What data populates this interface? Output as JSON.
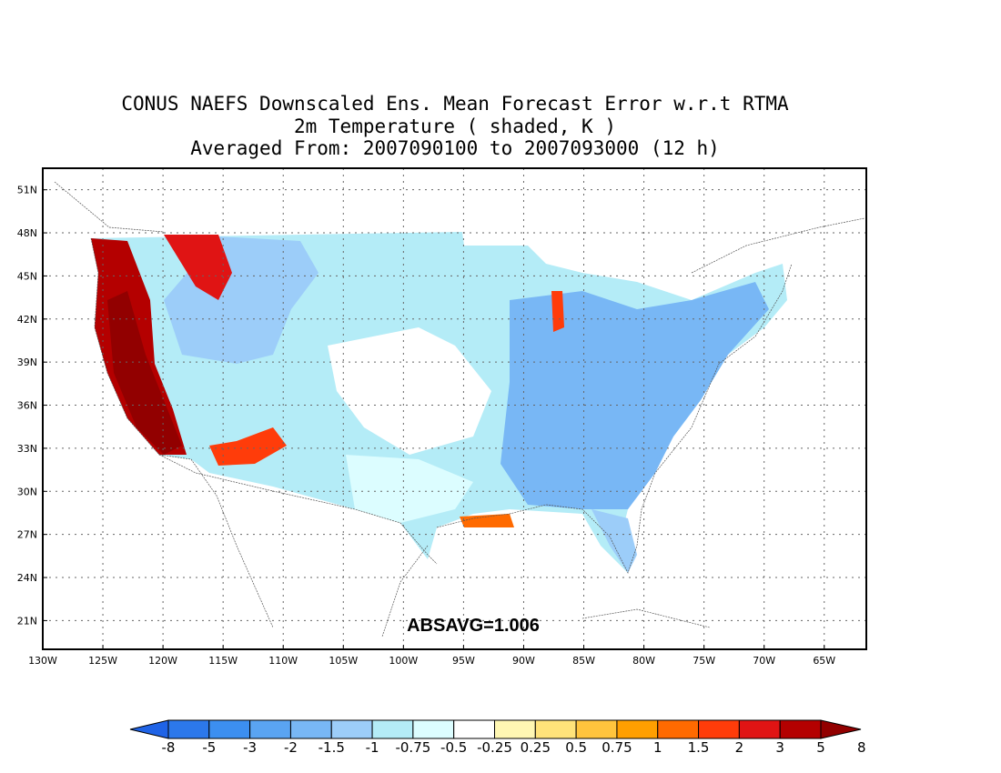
{
  "title": {
    "line1": "CONUS NAEFS Downscaled Ens. Mean Forecast Error w.r.t RTMA",
    "line2": "2m Temperature ( shaded, K )",
    "line3": "Averaged From: 2007090100 to 2007093000 (12 h)"
  },
  "annotation": "ABSAVG=1.006",
  "axes": {
    "lon_labels": [
      "130W",
      "125W",
      "120W",
      "115W",
      "110W",
      "105W",
      "100W",
      "95W",
      "90W",
      "85W",
      "80W",
      "75W",
      "70W",
      "65W"
    ],
    "lon_values": [
      -130,
      -125,
      -120,
      -115,
      -110,
      -105,
      -100,
      -95,
      -90,
      -85,
      -80,
      -75,
      -70,
      -65
    ],
    "lat_labels": [
      "21N",
      "24N",
      "27N",
      "30N",
      "33N",
      "36N",
      "39N",
      "42N",
      "45N",
      "48N",
      "51N"
    ],
    "lat_values": [
      21,
      24,
      27,
      30,
      33,
      36,
      39,
      42,
      45,
      48,
      51
    ],
    "lon_range": [
      -130,
      -61.5
    ],
    "lat_range": [
      19,
      52.5
    ],
    "grid": "dotted"
  },
  "colorbar": {
    "labels": [
      "-8",
      "-5",
      "-3",
      "-2",
      "-1.5",
      "-1",
      "-0.75",
      "-0.5",
      "-0.25",
      "0.25",
      "0.5",
      "0.75",
      "1",
      "1.5",
      "2",
      "3",
      "5",
      "8"
    ],
    "colors": [
      "#1f63e6",
      "#2c78eb",
      "#3c8ff0",
      "#5aa4f2",
      "#78b7f5",
      "#9ccdf9",
      "#b4ecf7",
      "#dcfdff",
      "#ffffff",
      "#fff7b3",
      "#ffe37a",
      "#ffc43d",
      "#ff9f00",
      "#ff6a00",
      "#ff3c0a",
      "#e01414",
      "#b40000",
      "#920000"
    ]
  },
  "regions": [
    {
      "name": "northeast_us",
      "value": -2
    },
    {
      "name": "southeast_us",
      "value": -2
    },
    {
      "name": "great_plains",
      "value": -1
    },
    {
      "name": "rockies",
      "value": -1.5
    },
    {
      "name": "central_plains",
      "value": -0.5
    },
    {
      "name": "southern_plains",
      "value": -0.75
    },
    {
      "name": "pacific_coast",
      "value": 3
    },
    {
      "name": "central_california",
      "value": 5
    },
    {
      "name": "northern_idaho",
      "value": 2
    },
    {
      "name": "lake_michigan",
      "value": 1.5
    },
    {
      "name": "gulf_coast",
      "value": 1
    },
    {
      "name": "arizona_new_mexico",
      "value": 1.5
    },
    {
      "name": "florida",
      "value": -1.5
    }
  ]
}
